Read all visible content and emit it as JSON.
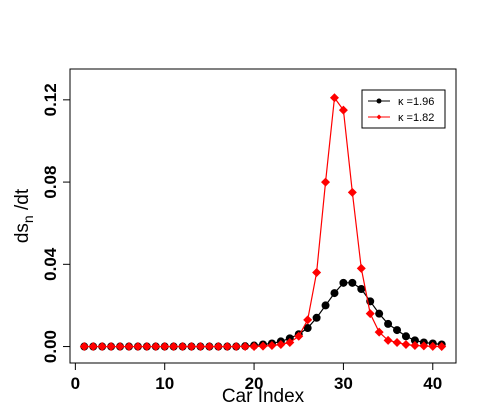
{
  "chart_data": {
    "type": "line",
    "x_label": "Car Index",
    "y_label_parts": [
      "ds",
      "n",
      " /dt"
    ],
    "x": [
      1,
      2,
      3,
      4,
      5,
      6,
      7,
      8,
      9,
      10,
      11,
      12,
      13,
      14,
      15,
      16,
      17,
      18,
      19,
      20,
      21,
      22,
      23,
      24,
      25,
      26,
      27,
      28,
      29,
      30,
      31,
      32,
      33,
      34,
      35,
      36,
      37,
      38,
      39,
      40,
      41
    ],
    "series": [
      {
        "name": "κ =1.96",
        "color": "#000000",
        "marker": "circle",
        "values": [
          0,
          0,
          0,
          0,
          0,
          0,
          0,
          0,
          0,
          0,
          0,
          0,
          0,
          0,
          0,
          0,
          0,
          0,
          0.0002,
          0.0005,
          0.001,
          0.0015,
          0.0025,
          0.004,
          0.006,
          0.009,
          0.014,
          0.02,
          0.026,
          0.031,
          0.031,
          0.028,
          0.022,
          0.016,
          0.011,
          0.008,
          0.005,
          0.003,
          0.002,
          0.0015,
          0.001
        ]
      },
      {
        "name": "κ =1.82",
        "color": "#ff0000",
        "marker": "diamond",
        "values": [
          0,
          0,
          0,
          0,
          0,
          0,
          0,
          0,
          0,
          0,
          0,
          0,
          0,
          0,
          0,
          0,
          0,
          0,
          0,
          0,
          0.0002,
          0.0005,
          0.001,
          0.002,
          0.005,
          0.013,
          0.036,
          0.08,
          0.121,
          0.115,
          0.075,
          0.038,
          0.016,
          0.007,
          0.003,
          0.002,
          0.001,
          0.0005,
          0.0003,
          0.0001,
          0
        ]
      }
    ],
    "xlim": [
      -0.6,
      42.6
    ],
    "xticks": [
      0,
      10,
      20,
      30,
      40
    ],
    "ylim": [
      -0.008,
      0.135
    ],
    "yticks": [
      {
        "value": 0,
        "label": "0.00"
      },
      {
        "value": 0.04,
        "label": "0.04"
      },
      {
        "value": 0.08,
        "label": "0.08"
      },
      {
        "value": 0.12,
        "label": "0.12"
      }
    ],
    "legend": "top-right"
  }
}
